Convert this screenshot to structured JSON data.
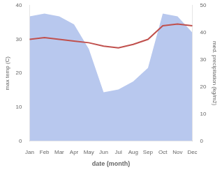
{
  "chart_data": {
    "type": "line",
    "xlabel": "date (month)",
    "ylabel": "max temp (C)",
    "y2label": "med. precipitation (kg/m2)",
    "categories": [
      "Jan",
      "Feb",
      "Mar",
      "Apr",
      "May",
      "Jun",
      "Jul",
      "Aug",
      "Sep",
      "Oct",
      "Nov",
      "Dec"
    ],
    "series": [
      {
        "type": "area",
        "color": "#b8c8ee",
        "axis": "y2",
        "values": [
          46,
          47,
          46,
          43,
          34,
          18,
          19,
          22,
          27,
          47,
          46,
          40
        ]
      },
      {
        "type": "line",
        "color": "#c0504d",
        "values": [
          30.0,
          30.5,
          30.0,
          29.5,
          29.0,
          28.0,
          27.5,
          28.5,
          30.0,
          34.0,
          34.5,
          34.0
        ]
      }
    ],
    "ylim": [
      0,
      40
    ],
    "yticks": [
      0,
      10,
      20,
      30,
      40
    ],
    "y2lim": [
      0,
      50
    ],
    "y2ticks": [
      0,
      10,
      20,
      30,
      40,
      50
    ],
    "grid": false
  }
}
